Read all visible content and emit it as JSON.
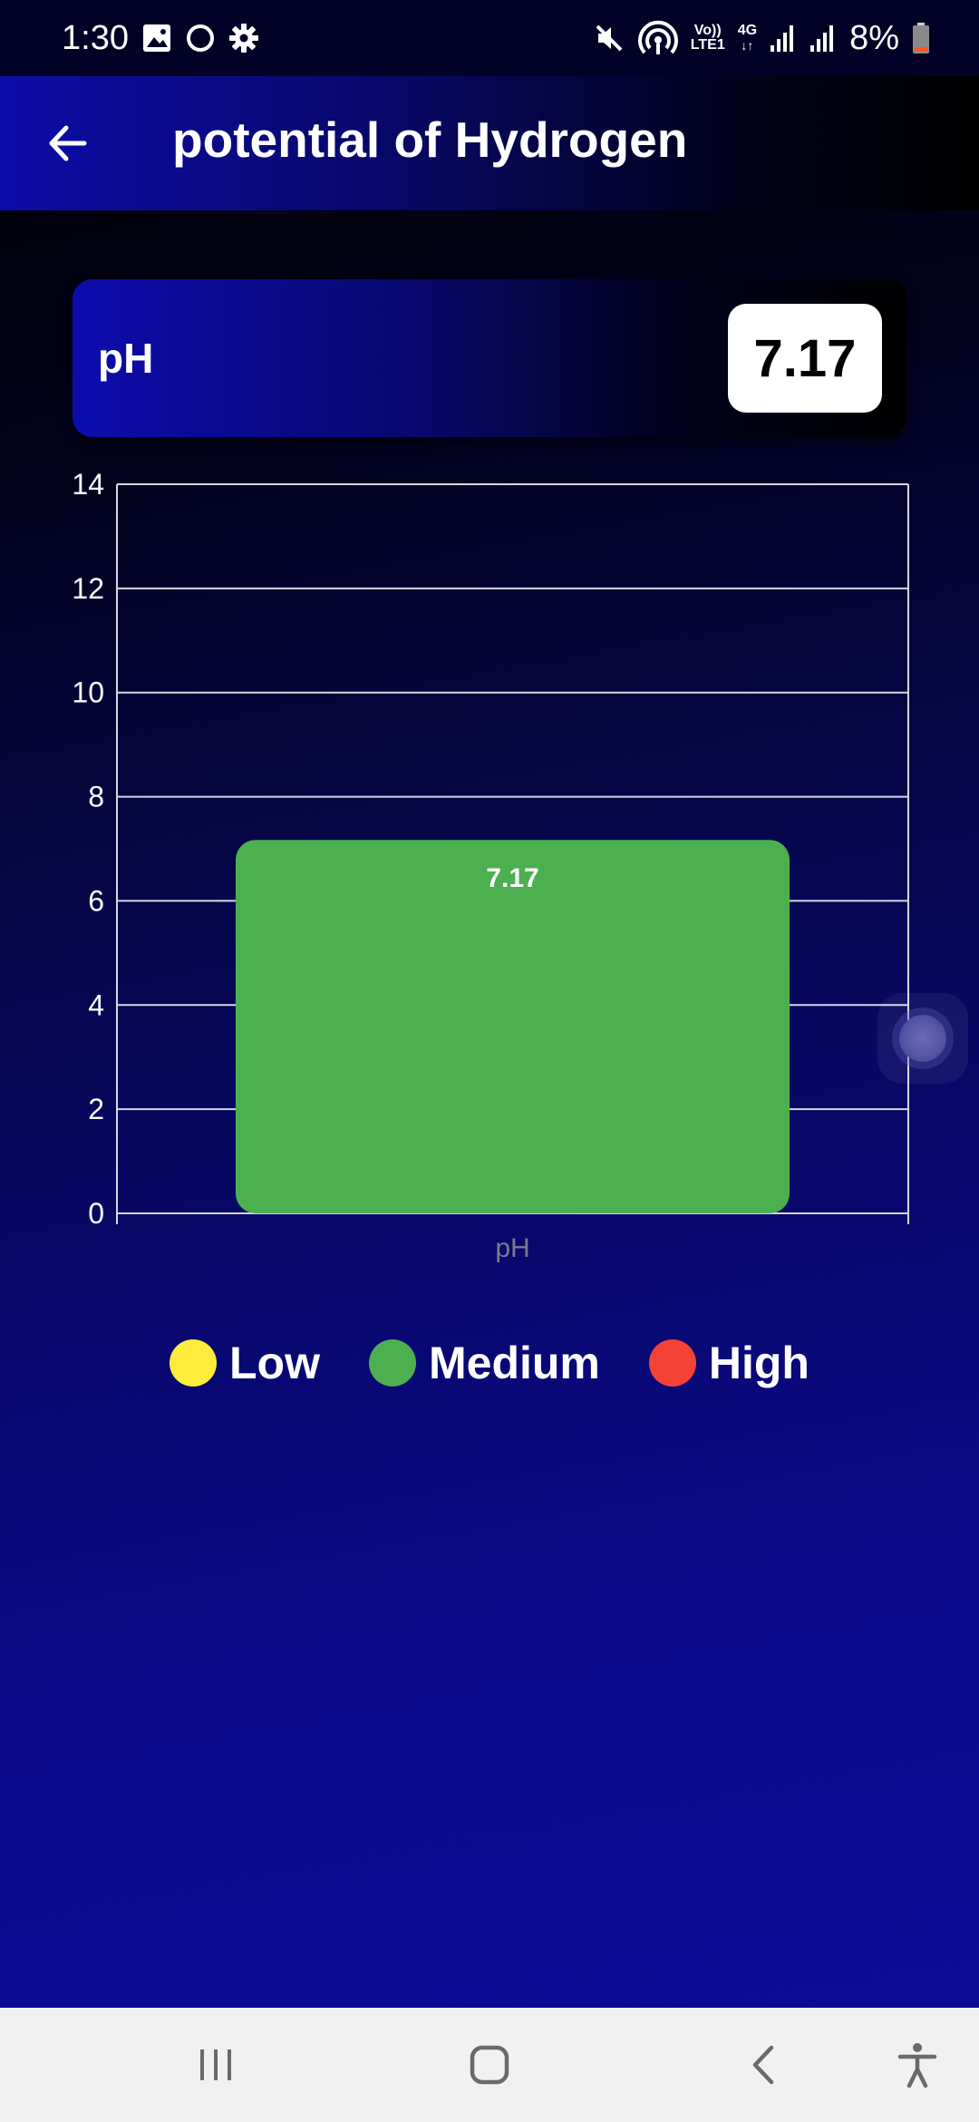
{
  "status_bar": {
    "time": "1:30",
    "network_top": "Vo))",
    "network_bottom": "LTE1",
    "network_type": "4G",
    "battery_percent": "8%",
    "icons": [
      "gallery-icon",
      "circle-icon",
      "settings-icon",
      "mute-icon",
      "hotspot-icon",
      "signal-icon",
      "signal-icon",
      "battery-icon"
    ]
  },
  "app_bar": {
    "title": "potential of Hydrogen",
    "back_icon": "arrow-left-icon"
  },
  "reading": {
    "label": "pH",
    "value": "7.17"
  },
  "chart_data": {
    "type": "bar",
    "categories": [
      "pH"
    ],
    "values": [
      7.17
    ],
    "value_labels": [
      "7.17"
    ],
    "bar_color": "#4CAF50",
    "xlabel": "",
    "ylabel": "",
    "ylim": [
      0,
      14
    ],
    "yticks": [
      0,
      2,
      4,
      6,
      8,
      10,
      12,
      14
    ],
    "grid": true
  },
  "legend": {
    "items": [
      {
        "label": "Low",
        "color": "#FFEB3B"
      },
      {
        "label": "Medium",
        "color": "#4CAF50"
      },
      {
        "label": "High",
        "color": "#F44336"
      }
    ]
  },
  "nav_bar": {
    "icons": [
      "recent-apps-icon",
      "home-icon",
      "back-icon",
      "accessibility-icon"
    ]
  }
}
